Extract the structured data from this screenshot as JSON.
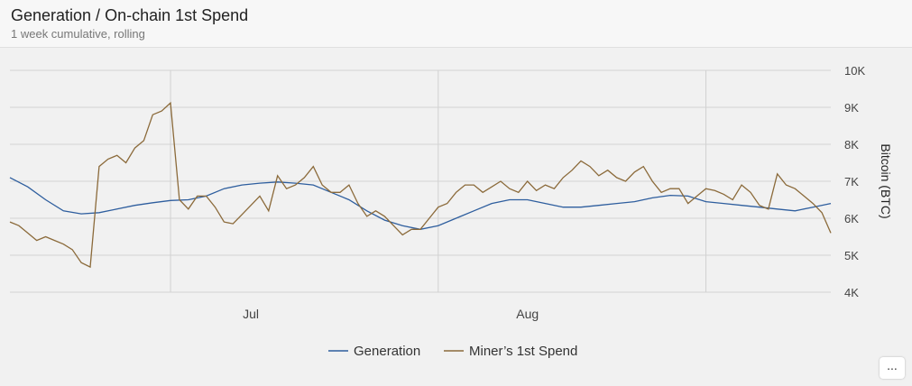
{
  "header": {
    "title": "Generation / On-chain 1st Spend",
    "subtitle": "1 week cumulative, rolling"
  },
  "more_button": {
    "label": "..."
  },
  "chart_data": {
    "type": "line",
    "ylabel": "Bitcoin (BTC)",
    "ylim": [
      4000,
      10000
    ],
    "yticks": [
      4000,
      5000,
      6000,
      7000,
      8000,
      9000,
      10000
    ],
    "ytick_labels": [
      "4K",
      "5K",
      "6K",
      "7K",
      "8K",
      "9K",
      "10K"
    ],
    "xlim": [
      "2020-06-04",
      "2020-09-04"
    ],
    "xticks": [
      "2020-07-01",
      "2020-08-01"
    ],
    "xtick_labels": [
      "Jul",
      "Aug"
    ],
    "grid": true,
    "legend": "bottom-center",
    "series": [
      {
        "name": "Generation",
        "color": "#2e5e9e",
        "points": [
          [
            "2020-06-04",
            7100
          ],
          [
            "2020-06-06",
            6850
          ],
          [
            "2020-06-08",
            6500
          ],
          [
            "2020-06-10",
            6200
          ],
          [
            "2020-06-12",
            6120
          ],
          [
            "2020-06-14",
            6150
          ],
          [
            "2020-06-16",
            6250
          ],
          [
            "2020-06-18",
            6350
          ],
          [
            "2020-06-20",
            6420
          ],
          [
            "2020-06-22",
            6480
          ],
          [
            "2020-06-24",
            6500
          ],
          [
            "2020-06-26",
            6600
          ],
          [
            "2020-06-28",
            6800
          ],
          [
            "2020-06-30",
            6900
          ],
          [
            "2020-07-02",
            6950
          ],
          [
            "2020-07-04",
            6980
          ],
          [
            "2020-07-06",
            6950
          ],
          [
            "2020-07-08",
            6900
          ],
          [
            "2020-07-10",
            6700
          ],
          [
            "2020-07-12",
            6500
          ],
          [
            "2020-07-14",
            6200
          ],
          [
            "2020-07-16",
            5950
          ],
          [
            "2020-07-18",
            5800
          ],
          [
            "2020-07-20",
            5700
          ],
          [
            "2020-07-22",
            5800
          ],
          [
            "2020-07-24",
            6000
          ],
          [
            "2020-07-26",
            6200
          ],
          [
            "2020-07-28",
            6400
          ],
          [
            "2020-07-30",
            6500
          ],
          [
            "2020-08-01",
            6500
          ],
          [
            "2020-08-03",
            6400
          ],
          [
            "2020-08-05",
            6300
          ],
          [
            "2020-08-07",
            6300
          ],
          [
            "2020-08-09",
            6350
          ],
          [
            "2020-08-11",
            6400
          ],
          [
            "2020-08-13",
            6450
          ],
          [
            "2020-08-15",
            6550
          ],
          [
            "2020-08-17",
            6620
          ],
          [
            "2020-08-19",
            6600
          ],
          [
            "2020-08-21",
            6450
          ],
          [
            "2020-08-23",
            6400
          ],
          [
            "2020-08-25",
            6350
          ],
          [
            "2020-08-27",
            6300
          ],
          [
            "2020-08-29",
            6250
          ],
          [
            "2020-08-31",
            6200
          ],
          [
            "2020-09-02",
            6300
          ],
          [
            "2020-09-04",
            6400
          ]
        ]
      },
      {
        "name": "Miner’s 1st Spend",
        "color": "#8b6a3a",
        "points": [
          [
            "2020-06-04",
            5900
          ],
          [
            "2020-06-05",
            5800
          ],
          [
            "2020-06-06",
            5600
          ],
          [
            "2020-06-07",
            5400
          ],
          [
            "2020-06-08",
            5500
          ],
          [
            "2020-06-09",
            5400
          ],
          [
            "2020-06-10",
            5300
          ],
          [
            "2020-06-11",
            5150
          ],
          [
            "2020-06-12",
            4800
          ],
          [
            "2020-06-13",
            4680
          ],
          [
            "2020-06-14",
            7400
          ],
          [
            "2020-06-15",
            7600
          ],
          [
            "2020-06-16",
            7700
          ],
          [
            "2020-06-17",
            7500
          ],
          [
            "2020-06-18",
            7900
          ],
          [
            "2020-06-19",
            8100
          ],
          [
            "2020-06-20",
            8800
          ],
          [
            "2020-06-21",
            8900
          ],
          [
            "2020-06-22",
            9120
          ],
          [
            "2020-06-23",
            6500
          ],
          [
            "2020-06-24",
            6250
          ],
          [
            "2020-06-25",
            6600
          ],
          [
            "2020-06-26",
            6600
          ],
          [
            "2020-06-27",
            6300
          ],
          [
            "2020-06-28",
            5900
          ],
          [
            "2020-06-29",
            5850
          ],
          [
            "2020-06-30",
            6100
          ],
          [
            "2020-07-01",
            6350
          ],
          [
            "2020-07-02",
            6600
          ],
          [
            "2020-07-03",
            6200
          ],
          [
            "2020-07-04",
            7150
          ],
          [
            "2020-07-05",
            6800
          ],
          [
            "2020-07-06",
            6900
          ],
          [
            "2020-07-07",
            7100
          ],
          [
            "2020-07-08",
            7400
          ],
          [
            "2020-07-09",
            6900
          ],
          [
            "2020-07-10",
            6700
          ],
          [
            "2020-07-11",
            6700
          ],
          [
            "2020-07-12",
            6900
          ],
          [
            "2020-07-13",
            6400
          ],
          [
            "2020-07-14",
            6050
          ],
          [
            "2020-07-15",
            6200
          ],
          [
            "2020-07-16",
            6050
          ],
          [
            "2020-07-17",
            5800
          ],
          [
            "2020-07-18",
            5550
          ],
          [
            "2020-07-19",
            5700
          ],
          [
            "2020-07-20",
            5700
          ],
          [
            "2020-07-21",
            6000
          ],
          [
            "2020-07-22",
            6300
          ],
          [
            "2020-07-23",
            6400
          ],
          [
            "2020-07-24",
            6700
          ],
          [
            "2020-07-25",
            6900
          ],
          [
            "2020-07-26",
            6900
          ],
          [
            "2020-07-27",
            6700
          ],
          [
            "2020-07-28",
            6850
          ],
          [
            "2020-07-29",
            7000
          ],
          [
            "2020-07-30",
            6800
          ],
          [
            "2020-07-31",
            6700
          ],
          [
            "2020-08-01",
            7000
          ],
          [
            "2020-08-02",
            6750
          ],
          [
            "2020-08-03",
            6900
          ],
          [
            "2020-08-04",
            6800
          ],
          [
            "2020-08-05",
            7100
          ],
          [
            "2020-08-06",
            7300
          ],
          [
            "2020-08-07",
            7550
          ],
          [
            "2020-08-08",
            7400
          ],
          [
            "2020-08-09",
            7150
          ],
          [
            "2020-08-10",
            7300
          ],
          [
            "2020-08-11",
            7100
          ],
          [
            "2020-08-12",
            7000
          ],
          [
            "2020-08-13",
            7250
          ],
          [
            "2020-08-14",
            7400
          ],
          [
            "2020-08-15",
            7000
          ],
          [
            "2020-08-16",
            6700
          ],
          [
            "2020-08-17",
            6800
          ],
          [
            "2020-08-18",
            6800
          ],
          [
            "2020-08-19",
            6400
          ],
          [
            "2020-08-20",
            6600
          ],
          [
            "2020-08-21",
            6800
          ],
          [
            "2020-08-22",
            6750
          ],
          [
            "2020-08-23",
            6650
          ],
          [
            "2020-08-24",
            6500
          ],
          [
            "2020-08-25",
            6900
          ],
          [
            "2020-08-26",
            6700
          ],
          [
            "2020-08-27",
            6350
          ],
          [
            "2020-08-28",
            6250
          ],
          [
            "2020-08-29",
            7200
          ],
          [
            "2020-08-30",
            6900
          ],
          [
            "2020-08-31",
            6800
          ],
          [
            "2020-09-01",
            6600
          ],
          [
            "2020-09-02",
            6400
          ],
          [
            "2020-09-03",
            6150
          ],
          [
            "2020-09-04",
            5600
          ]
        ]
      }
    ]
  }
}
